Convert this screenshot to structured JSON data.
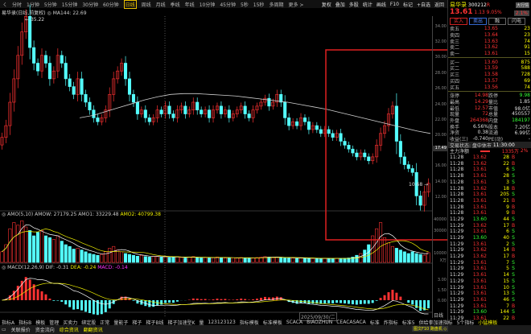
{
  "topbar": {
    "tabs": [
      "ㄑ",
      "分时",
      "1分钟",
      "5分钟",
      "15分钟",
      "30分钟",
      "60分钟",
      "日线",
      "周线",
      "月线",
      "季线",
      "年线",
      "10分钟",
      "45分钟",
      "5秒",
      "15秒",
      "多周期",
      "更多 >"
    ],
    "active": 7
  },
  "toolbar": [
    "复权",
    "叠加",
    "多股",
    "统计",
    "画线",
    "F10",
    "标记",
    "+自选",
    "返回"
  ],
  "title": {
    "stock": "易华录(日线,前复权)",
    "ma_label": "MA144: 22.69",
    "high_mark": "35.22",
    "low_mark": "10.68",
    "price_tag": "17.49",
    "date_label": "2025/09/30/二",
    "period_label": "日线"
  },
  "indicators": {
    "amo": "AMO(5,10)",
    "amow": "AMOW: 27179.25",
    "amo1": "AMO1: 33229.48",
    "amo2": "AMO2: 40799.38",
    "macd": "MACD(12,26,9)",
    "dif": "DIF: -0.31",
    "dea": "DEA: -0.24",
    "macdv": "MACD: -0.14"
  },
  "axis": {
    "price": [
      "34.00",
      "32.00",
      "30.00",
      "28.00",
      "26.00",
      "24.00",
      "22.00",
      "20.00",
      "16.00",
      "14.00",
      "12.00"
    ],
    "volume": [
      "40000",
      "30000",
      "10000"
    ],
    "volume_unit": "X万",
    "macd": [
      "3.00",
      "1.50",
      "0.00"
    ]
  },
  "chart_data": [
    {
      "type": "candlestick",
      "title": "易华录(日线,前复权)",
      "ylim": [
        10,
        36
      ],
      "close": [
        19.5,
        21,
        24,
        27,
        30,
        33,
        35,
        31,
        29,
        28,
        30,
        29,
        27,
        28,
        30,
        29,
        27,
        26,
        25,
        27,
        25,
        24,
        23,
        22,
        21.5,
        22,
        23,
        25,
        27,
        28,
        29,
        27,
        25,
        24,
        22.5,
        23,
        22,
        21.5,
        22,
        23,
        22.5,
        23.5,
        22.5,
        22,
        23,
        23.5,
        22.5,
        23,
        24,
        23,
        22.5,
        23,
        22,
        23,
        23.5,
        22.5,
        23,
        22,
        22.5,
        23,
        23.5,
        22.5,
        22,
        23,
        23.5,
        24,
        24.5,
        23.5,
        24,
        25,
        24,
        22,
        21,
        21.5,
        21,
        22,
        21.5,
        20.5,
        21,
        20.5,
        20,
        20.5,
        20,
        19.5,
        20,
        19,
        18.5,
        18,
        17.5,
        17,
        17.5,
        17,
        16.5,
        17,
        18.5,
        20,
        21,
        22.5,
        23.5,
        19,
        17,
        16,
        15.5,
        15,
        12,
        10.8,
        12.5,
        13.61
      ],
      "ma144": [
        22,
        22.3,
        22.8,
        23.3,
        23.8,
        24.3,
        24.7,
        25,
        25.1,
        25.1,
        25,
        24.9,
        24.8,
        24.6,
        24.4,
        24.2,
        24,
        23.7,
        23.4,
        23.1,
        22.7,
        22.3,
        21.9,
        21.5,
        21.1,
        20.7,
        20.3,
        20
      ],
      "ma_start": 20
    },
    {
      "type": "bar",
      "ylim": [
        0,
        50000
      ],
      "volume": [
        12000,
        20000,
        38000,
        45000,
        42000,
        47000,
        40000,
        36000,
        30000,
        34000,
        36000,
        30000,
        28000,
        26000,
        30000,
        24000,
        20000,
        18000,
        15000,
        16000,
        14000,
        12000,
        10000,
        9000,
        8000,
        9000,
        12000,
        16000,
        18000,
        14000,
        12000,
        10000,
        9000,
        8000,
        7000,
        8000,
        6500,
        6000,
        7000,
        6500,
        6000,
        6500,
        5500,
        6000,
        6500,
        5500,
        5000,
        6000,
        6500,
        5500,
        5000,
        5500,
        5000,
        5500,
        6000,
        5500,
        5000,
        4800,
        5200,
        5000,
        5500,
        5000,
        4800,
        5000,
        5500,
        6000,
        6500,
        6000,
        5500,
        6000,
        5500,
        5000,
        4800,
        5000,
        4500,
        5000,
        4800,
        4500,
        4600,
        4400,
        4300,
        4500,
        4400,
        4300,
        4500,
        4400,
        4600,
        5000,
        6000,
        8000,
        10000,
        14000,
        20000,
        30000,
        38000,
        45000,
        28000,
        22000,
        18000,
        16000,
        14000,
        12000,
        10000,
        12000,
        10000,
        9000,
        8000,
        11000
      ]
    }
  ],
  "quote": {
    "name": "易华录",
    "code": "300212",
    "flag": "R",
    "price": "13.61",
    "change": "1.13",
    "pct": "9.05%",
    "side_btn": "大行情",
    "side_btn2": "2.1%",
    "buttons": [
      "买入",
      "卖出",
      "融",
      "闪电"
    ]
  },
  "orderbook": [
    [
      "卖五",
      "13.65",
      "23"
    ],
    [
      "卖四",
      "13.64",
      "23"
    ],
    [
      "卖三",
      "13.63",
      "74"
    ],
    [
      "卖二",
      "13.62",
      "91"
    ],
    [
      "卖一",
      "13.61",
      "15"
    ],
    [
      "买一",
      "13.60",
      "875"
    ],
    [
      "买二",
      "13.59",
      "588"
    ],
    [
      "买三",
      "13.58",
      "728"
    ],
    [
      "买四",
      "13.57",
      "69"
    ],
    [
      "买五",
      "13.56",
      "74"
    ]
  ],
  "stats": [
    [
      "涨停",
      "14.98",
      "跌停",
      "9.98"
    ],
    [
      "最高",
      "14.29",
      "量比",
      "1.85"
    ],
    [
      "最低",
      "12.57",
      "市值",
      "98.0亿"
    ],
    [
      "现量",
      "72",
      "总量",
      "450557"
    ],
    [
      "外盘",
      "264368",
      "内盘",
      "184197"
    ],
    [
      "换手",
      "6.56%",
      "股本",
      "7.20亿"
    ],
    [
      "净资",
      "0.38",
      "流通",
      "6.99亿"
    ],
    [
      "收益(三)",
      "-0.740",
      "PE(动)",
      "-"
    ]
  ],
  "status": {
    "label": "交易状态: 盘中休市",
    "time": "11:30:00"
  },
  "mainflow": {
    "label": "主力净额",
    "value": "1335万",
    "pct": "2%"
  },
  "ticks": [
    [
      "11:28",
      "13.62",
      "28",
      "B"
    ],
    [
      "11:28",
      "13.62",
      "22",
      "B"
    ],
    [
      "11:28",
      "13.61",
      "6",
      "S"
    ],
    [
      "11:28",
      "13.61",
      "28",
      "S"
    ],
    [
      "11:28",
      "13.61",
      "3",
      "S"
    ],
    [
      "11:28",
      "13.62",
      "18",
      "B"
    ],
    [
      "11:28",
      "13.61",
      "205",
      "S"
    ],
    [
      "11:28",
      "13.61",
      "21",
      "B"
    ],
    [
      "11:28",
      "13.61",
      "9",
      "B"
    ],
    [
      "11:28",
      "13.61",
      "9",
      "B"
    ],
    [
      "11:29",
      "13.60",
      "44",
      "S"
    ],
    [
      "11:29",
      "13.62",
      "17",
      "B"
    ],
    [
      "11:29",
      "13.61",
      "6",
      "S"
    ],
    [
      "11:29",
      "13.60",
      "40",
      "S"
    ],
    [
      "11:29",
      "13.61",
      "2",
      "S"
    ],
    [
      "11:29",
      "13.62",
      "14",
      "B"
    ],
    [
      "11:29",
      "13.62",
      "17",
      "B"
    ],
    [
      "11:29",
      "13.61",
      "7",
      "S"
    ],
    [
      "11:29",
      "13.61",
      "5",
      "S"
    ],
    [
      "11:29",
      "13.61",
      "14",
      "S"
    ],
    [
      "11:29",
      "13.61",
      "15",
      "S"
    ],
    [
      "11:29",
      "13.61",
      "10",
      "S"
    ],
    [
      "11:29",
      "13.61",
      "13",
      "S"
    ],
    [
      "11:29",
      "13.61",
      "46",
      "S"
    ],
    [
      "11:29",
      "13.61",
      "7",
      "B"
    ],
    [
      "11:29",
      "13.60",
      "144",
      "S"
    ],
    [
      "11:29",
      "13.61",
      "22",
      "B"
    ]
  ],
  "indtabs": [
    "指标A",
    "指标B",
    "模板",
    "管理",
    "买卖力",
    "绑定股",
    "正常",
    "量能子",
    "梯子",
    "梯子B线",
    "梯子加速型K",
    "量",
    "123123123",
    "指标模板",
    "标准模板",
    "SCACA",
    "BIAOZHUN",
    "CEACASACA",
    "标准",
    "炸指标",
    "标准5",
    "供给拳加速指标",
    "5个指标",
    "小猛模板"
  ],
  "bottom": [
    "▭",
    "关联报价",
    "资金流向",
    "综合资讯",
    "翻翻资讯"
  ],
  "bottom_right": "图文F10 跑盘机 ◇",
  "colors": {
    "up": "#ff3232",
    "down": "#54ffff",
    "ma": "#cfcfcf",
    "highlight_box": "#e02020"
  }
}
